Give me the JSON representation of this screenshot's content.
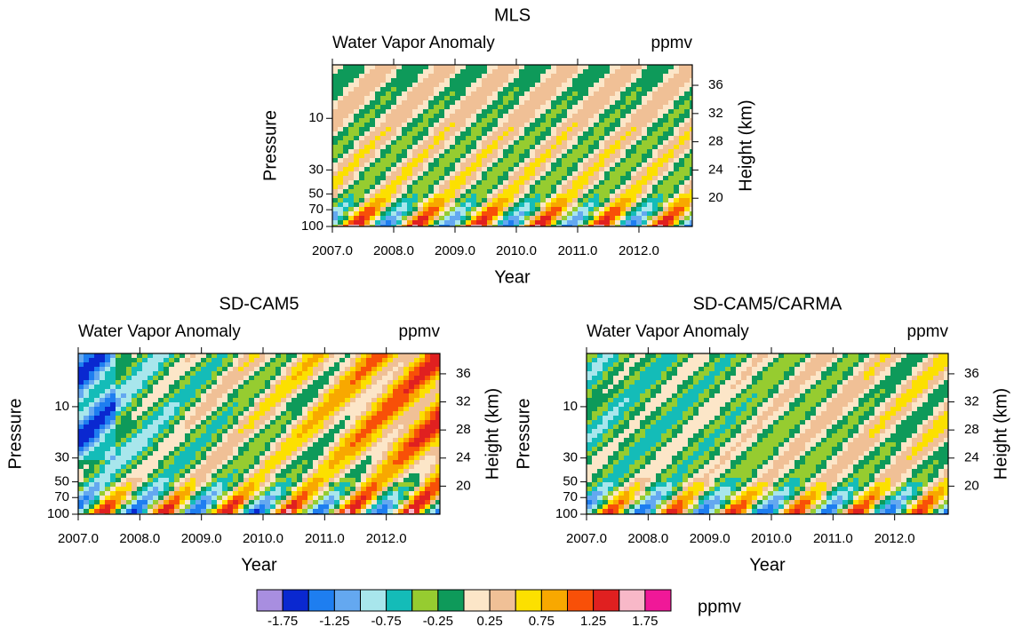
{
  "chart_data": [
    {
      "type": "contour",
      "title": "MLS",
      "subtitle": "Water Vapor Anomaly",
      "units_label": "ppmv",
      "xlabel": "Year",
      "ylabel": "Pressure",
      "y2label": "Height (km)",
      "xlim": [
        2007.0,
        2012.87
      ],
      "xticks": [
        {
          "value": 2007,
          "label": "2007.0"
        },
        {
          "value": 2008,
          "label": "2008.0"
        },
        {
          "value": 2009,
          "label": "2009.0"
        },
        {
          "value": 2010,
          "label": "2010.0"
        },
        {
          "value": 2011,
          "label": "2011.0"
        },
        {
          "value": 2012,
          "label": "2012.0"
        }
      ],
      "ylim": [
        100,
        3.2
      ],
      "yticks": [
        10,
        30,
        50,
        70,
        100
      ],
      "yscale": "log",
      "y2lim": [
        16,
        38.9
      ],
      "y2ticks": [
        20,
        24,
        28,
        32,
        36
      ]
    },
    {
      "type": "contour",
      "title": "SD-CAM5",
      "subtitle": "Water Vapor Anomaly",
      "units_label": "ppmv",
      "xlabel": "Year",
      "ylabel": "Pressure",
      "y2label": "Height (km)",
      "xlim": [
        2007.0,
        2012.87
      ],
      "xticks": [
        {
          "value": 2007,
          "label": "2007.0"
        },
        {
          "value": 2008,
          "label": "2008.0"
        },
        {
          "value": 2009,
          "label": "2009.0"
        },
        {
          "value": 2010,
          "label": "2010.0"
        },
        {
          "value": 2011,
          "label": "2011.0"
        },
        {
          "value": 2012,
          "label": "2012.0"
        }
      ],
      "ylim": [
        100,
        3.2
      ],
      "yticks": [
        10,
        30,
        50,
        70,
        100
      ],
      "yscale": "log",
      "y2lim": [
        16,
        38.9
      ],
      "y2ticks": [
        20,
        24,
        28,
        32,
        36
      ]
    },
    {
      "type": "contour",
      "title": "SD-CAM5/CARMA",
      "subtitle": "Water Vapor Anomaly",
      "units_label": "ppmv",
      "xlabel": "Year",
      "ylabel": "Pressure",
      "y2label": "Height (km)",
      "xlim": [
        2007.0,
        2012.87
      ],
      "xticks": [
        {
          "value": 2007,
          "label": "2007.0"
        },
        {
          "value": 2008,
          "label": "2008.0"
        },
        {
          "value": 2009,
          "label": "2009.0"
        },
        {
          "value": 2010,
          "label": "2010.0"
        },
        {
          "value": 2011,
          "label": "2011.0"
        },
        {
          "value": 2012,
          "label": "2012.0"
        }
      ],
      "ylim": [
        100,
        3.2
      ],
      "yticks": [
        10,
        30,
        50,
        70,
        100
      ],
      "yscale": "log",
      "y2lim": [
        16,
        38.9
      ],
      "y2ticks": [
        20,
        24,
        28,
        32,
        36
      ]
    }
  ],
  "colorbar": {
    "levels": [
      -1.75,
      -1.5,
      -1.25,
      -1,
      -0.75,
      -0.5,
      -0.25,
      0,
      0.25,
      0.5,
      0.75,
      1,
      1.25,
      1.5,
      1.75
    ],
    "colors": [
      "#a88ee0",
      "#0a28d0",
      "#1e7ef0",
      "#64a8f0",
      "#a8e6ec",
      "#14bcb8",
      "#96cc30",
      "#0e9a5a",
      "#fce6c8",
      "#f0c096",
      "#fce000",
      "#f8a800",
      "#f85008",
      "#e02020",
      "#f8b8c8",
      "#f01898"
    ],
    "ticks": [
      -1.75,
      -1.25,
      -0.75,
      -0.25,
      0.25,
      0.75,
      1.25,
      1.75
    ],
    "label": "ppmv"
  }
}
